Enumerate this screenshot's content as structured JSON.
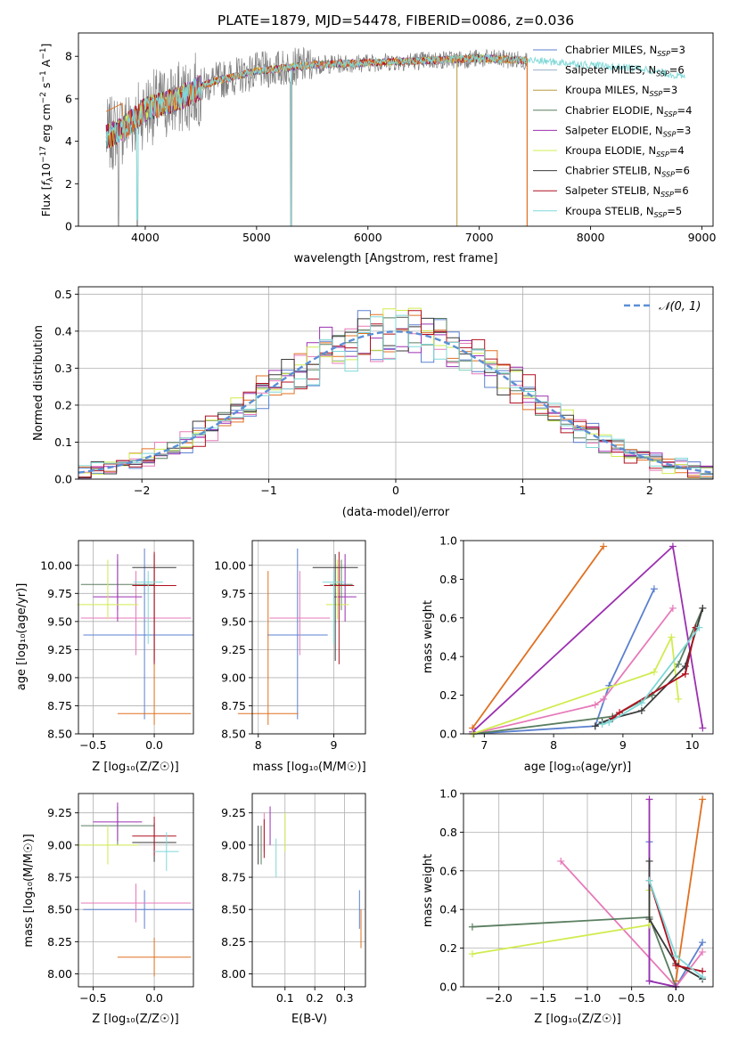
{
  "colors": [
    "#5b80d0",
    "#e07020",
    "#e779b9",
    "#5a7e60",
    "#9b30b0",
    "#d0ec50",
    "#3a3a3a",
    "#b01020",
    "#7fd8d8"
  ],
  "spectrum": {
    "title": "PLATE=1879, MJD=54478, FIBERID=0086, z=0.036",
    "xlabel": "wavelength [Angstrom, rest frame]",
    "ylabel_parts": [
      "Flux [",
      "f",
      "λ",
      "10",
      "−17",
      " erg cm",
      "−2",
      " s",
      "−1",
      " A",
      "−1",
      "]"
    ],
    "xticks": [
      4000,
      5000,
      6000,
      7000,
      8000,
      9000
    ],
    "yticks": [
      0,
      2,
      4,
      6,
      8
    ],
    "legend": [
      {
        "pre": "Chabrier MILES, N",
        "sub": "SSP",
        "post": "=3"
      },
      {
        "pre": "Salpeter MILES, N",
        "sub": "SSP",
        "post": "=6"
      },
      {
        "pre": "Kroupa MILES, N",
        "sub": "SSP",
        "post": "=3"
      },
      {
        "pre": "Chabrier ELODIE, N",
        "sub": "SSP",
        "post": "=4"
      },
      {
        "pre": "Salpeter ELODIE, N",
        "sub": "SSP",
        "post": "=3"
      },
      {
        "pre": "Kroupa ELODIE, N",
        "sub": "SSP",
        "post": "=4"
      },
      {
        "pre": "Chabrier STELIB, N",
        "sub": "SSP",
        "post": "=6"
      },
      {
        "pre": "Salpeter STELIB, N",
        "sub": "SSP",
        "post": "=6"
      },
      {
        "pre": "Kroupa STELIB, N",
        "sub": "SSP",
        "post": "=5"
      }
    ]
  },
  "residuals": {
    "xlabel": "(data-model)/error",
    "ylabel": "Normed distribution",
    "legend": "𝒩(0, 1)",
    "xticks": [
      -2,
      -1,
      0,
      1,
      2
    ],
    "yticks": [
      0.0,
      0.1,
      0.2,
      0.3,
      0.4,
      0.5
    ]
  },
  "panels": {
    "age_z_ylabel": "age  [log₁₀(age/yr)]",
    "z_xlabel": "Z [log₁₀(Z/Z☉)]",
    "mass_xlabel": "mass [log₁₀(M/M☉)]",
    "mass_ylabel": "mass [log₁₀(M/M☉)]",
    "ebv_xlabel": "E(B-V)",
    "weight_ylabel": "mass weight",
    "age_xlabel": "age  [log₁₀(age/yr)]"
  },
  "chart_data": [
    {
      "type": "line",
      "title": "PLATE=1879, MJD=54478, FIBERID=0086, z=0.036",
      "xlabel": "wavelength [Angstrom, rest frame]",
      "ylabel": "Flux [fλ 10^-17 erg cm^-2 s^-1 A^-1]",
      "xlim": [
        3400,
        9100
      ],
      "ylim": [
        0,
        9.1
      ],
      "series_description": "observed spectrum (grey) with 9 model fits overlaid",
      "spectrum_shape": {
        "x": [
          3650,
          3800,
          4000,
          4300,
          4600,
          5000,
          5500,
          6000,
          6500,
          7000,
          7500,
          8000,
          8500,
          8850
        ],
        "y": [
          4.2,
          4.6,
          5.5,
          6.0,
          6.8,
          7.3,
          7.6,
          7.7,
          7.8,
          7.9,
          7.8,
          7.6,
          7.4,
          7.0
        ]
      }
    },
    {
      "type": "line",
      "xlabel": "(data-model)/error",
      "ylabel": "Normed distribution",
      "xlim": [
        -2.5,
        2.5
      ],
      "ylim": [
        0,
        0.52
      ],
      "series": [
        {
          "name": "𝒩(0, 1)",
          "x": [
            -2.5,
            -2,
            -1.5,
            -1,
            -0.5,
            0,
            0.5,
            1,
            1.5,
            2,
            2.5
          ],
          "y": [
            0.018,
            0.054,
            0.13,
            0.242,
            0.352,
            0.399,
            0.352,
            0.242,
            0.13,
            0.054,
            0.018
          ]
        }
      ]
    },
    {
      "type": "scatter",
      "xlabel": "Z [log10(Z/Z☉)]",
      "ylabel": "age [log10(age/yr)]",
      "xlim": [
        -0.62,
        0.32
      ],
      "ylim": [
        8.5,
        10.22
      ],
      "points": [
        {
          "x": -0.08,
          "y": 9.38,
          "xerr": 0.5,
          "yerr": [
            9.38,
            8.63,
            10.15
          ]
        },
        {
          "x": 0.0,
          "y": 8.68,
          "xerr": 0.3,
          "yerr": [
            8.68,
            8.58,
            9.98
          ]
        },
        {
          "x": -0.15,
          "y": 9.53,
          "xerr": 0.45,
          "yerr": [
            9.53,
            9.2,
            9.95
          ]
        },
        {
          "x": -0.3,
          "y": 9.83,
          "xerr": 0.3,
          "yerr": [
            9.83,
            9.6,
            10.05
          ]
        },
        {
          "x": -0.3,
          "y": 9.72,
          "xerr": 0.2,
          "yerr": [
            9.72,
            9.5,
            10.1
          ]
        },
        {
          "x": -0.38,
          "y": 9.65,
          "xerr": 0.25,
          "yerr": [
            9.65,
            9.52,
            10.05
          ]
        },
        {
          "x": 0.0,
          "y": 9.98,
          "xerr": 0.18,
          "yerr": [
            9.98,
            9.15,
            10.1
          ]
        },
        {
          "x": 0.0,
          "y": 9.82,
          "xerr": 0.18,
          "yerr": [
            9.82,
            9.12,
            10.12
          ]
        },
        {
          "x": -0.05,
          "y": 9.85,
          "xerr": 0.12,
          "yerr": [
            9.85,
            9.3,
            9.95
          ]
        }
      ]
    },
    {
      "type": "scatter",
      "xlabel": "mass [log10(M/M☉)]",
      "xlim": [
        7.92,
        9.42
      ],
      "ylim": [
        8.5,
        10.22
      ],
      "points": [
        {
          "x": 8.52,
          "y": 9.38,
          "xerr": 0.4,
          "yerr": [
            8.63,
            10.15
          ]
        },
        {
          "x": 8.13,
          "y": 8.68,
          "xerr": 0.4,
          "yerr": [
            8.58,
            9.95
          ]
        },
        {
          "x": 8.55,
          "y": 9.53,
          "xerr": 0.4,
          "yerr": [
            9.2,
            9.95
          ]
        },
        {
          "x": 9.1,
          "y": 9.83,
          "xerr": 0.15,
          "yerr": [
            9.6,
            10.05
          ]
        },
        {
          "x": 9.15,
          "y": 9.72,
          "xerr": 0.15,
          "yerr": [
            9.5,
            10.1
          ]
        },
        {
          "x": 9.05,
          "y": 9.65,
          "xerr": 0.15,
          "yerr": [
            9.52,
            10.05
          ]
        },
        {
          "x": 9.02,
          "y": 9.98,
          "xerr": 0.3,
          "yerr": [
            9.15,
            10.1
          ]
        },
        {
          "x": 9.07,
          "y": 9.82,
          "xerr": 0.2,
          "yerr": [
            9.12,
            10.12
          ]
        },
        {
          "x": 9.0,
          "y": 9.85,
          "xerr": 0.15,
          "yerr": [
            9.3,
            9.95
          ]
        }
      ]
    },
    {
      "type": "line",
      "xlabel": "age [log10(age/yr)]",
      "ylabel": "mass weight",
      "xlim": [
        6.7,
        10.3
      ],
      "ylim": [
        0,
        1
      ],
      "series": [
        {
          "x": [
            6.83,
            8.6,
            8.8,
            9.45
          ],
          "y": [
            0.0,
            0.04,
            0.25,
            0.75
          ]
        },
        {
          "x": [
            6.83,
            8.72
          ],
          "y": [
            0.03,
            0.97
          ]
        },
        {
          "x": [
            6.83,
            8.6,
            8.72,
            9.72
          ],
          "y": [
            0.0,
            0.15,
            0.18,
            0.65
          ]
        },
        {
          "x": [
            6.85,
            8.85,
            9.42,
            9.8,
            10.15
          ],
          "y": [
            0.0,
            0.09,
            0.2,
            0.36,
            0.65
          ]
        },
        {
          "x": [
            6.83,
            9.72,
            10.15
          ],
          "y": [
            0.01,
            0.97,
            0.03
          ]
        },
        {
          "x": [
            6.83,
            9.45,
            9.7,
            9.8
          ],
          "y": [
            0.0,
            0.32,
            0.5,
            0.18
          ]
        },
        {
          "x": [
            8.6,
            8.7,
            8.85,
            9.27,
            9.9,
            10.15
          ],
          "y": [
            0.04,
            0.06,
            0.08,
            0.12,
            0.35,
            0.65
          ]
        },
        {
          "x": [
            8.85,
            8.95,
            9.9,
            10.05
          ],
          "y": [
            0.08,
            0.11,
            0.31,
            0.55
          ]
        },
        {
          "x": [
            8.7,
            8.8,
            9.27,
            10.1
          ],
          "y": [
            0.05,
            0.06,
            0.16,
            0.55
          ]
        }
      ]
    },
    {
      "type": "scatter",
      "xlabel": "Z [log10(Z/Z☉)]",
      "ylabel": "mass [log10(M/M☉)]",
      "xlim": [
        -0.62,
        0.32
      ],
      "ylim": [
        7.9,
        9.4
      ],
      "points": [
        {
          "x": -0.08,
          "y": 8.5,
          "xerr": 0.5
        },
        {
          "x": 0.0,
          "y": 8.13,
          "xerr": 0.3
        },
        {
          "x": -0.15,
          "y": 8.55,
          "xerr": 0.45
        },
        {
          "x": -0.3,
          "y": 9.15,
          "xerr": 0.3
        },
        {
          "x": -0.3,
          "y": 9.18,
          "xerr": 0.2
        },
        {
          "x": -0.38,
          "y": 9.0,
          "xerr": 0.25
        },
        {
          "x": 0.0,
          "y": 9.02,
          "xerr": 0.18
        },
        {
          "x": 0.0,
          "y": 9.07,
          "xerr": 0.18
        },
        {
          "x": 0.1,
          "y": 8.95,
          "xerr": 0.1
        }
      ]
    },
    {
      "type": "scatter",
      "xlabel": "E(B-V)",
      "xlim": [
        -0.01,
        0.37
      ],
      "ylim": [
        7.9,
        9.4
      ],
      "points": [
        {
          "x": 0.35,
          "y": 8.5
        },
        {
          "x": 0.355,
          "y": 8.35
        },
        {
          "x": 0.03,
          "y": 9.1
        },
        {
          "x": 0.02,
          "y": 9.0
        },
        {
          "x": 0.05,
          "y": 9.15
        },
        {
          "x": 0.1,
          "y": 9.1
        },
        {
          "x": 0.01,
          "y": 9.0
        },
        {
          "x": 0.03,
          "y": 9.05
        },
        {
          "x": 0.07,
          "y": 8.9
        }
      ]
    },
    {
      "type": "line",
      "xlabel": "Z [log10(Z/Z☉)]",
      "ylabel": "mass weight",
      "xlim": [
        -2.4,
        0.42
      ],
      "ylim": [
        0,
        1
      ],
      "series": [
        {
          "x": [
            -0.3,
            -0.3,
            0.0,
            0.3
          ],
          "y": [
            0.75,
            0.03,
            0.0,
            0.23
          ]
        },
        {
          "x": [
            0.0,
            0.3
          ],
          "y": [
            0.03,
            0.97
          ]
        },
        {
          "x": [
            -1.3,
            0.0,
            0.3
          ],
          "y": [
            0.65,
            0.0,
            0.18
          ]
        },
        {
          "x": [
            -2.3,
            -0.3,
            0.0
          ],
          "y": [
            0.31,
            0.36,
            0.0
          ]
        },
        {
          "x": [
            -0.3,
            -0.3,
            0.0
          ],
          "y": [
            0.97,
            0.03,
            0.0
          ]
        },
        {
          "x": [
            -2.3,
            -0.3,
            -0.3
          ],
          "y": [
            0.17,
            0.32,
            0.5
          ]
        },
        {
          "x": [
            -0.3,
            -0.3,
            0.0,
            0.3
          ],
          "y": [
            0.65,
            0.35,
            0.12,
            0.04
          ]
        },
        {
          "x": [
            -0.3,
            0.0,
            0.3
          ],
          "y": [
            0.55,
            0.11,
            0.08
          ]
        },
        {
          "x": [
            -0.3,
            0.0,
            0.3
          ],
          "y": [
            0.55,
            0.16,
            0.05
          ]
        }
      ]
    }
  ]
}
